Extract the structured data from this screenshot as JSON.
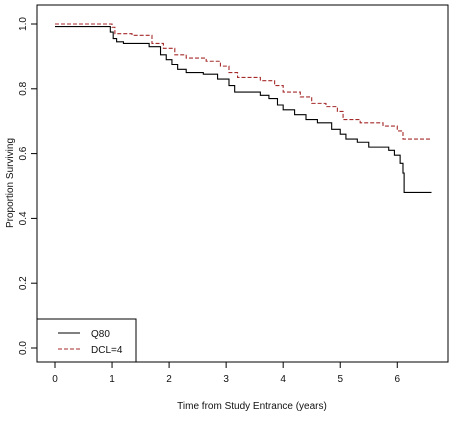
{
  "chart_data": {
    "type": "line",
    "title": "",
    "xlabel": "Time from Study Entrance (years)",
    "ylabel": "Proportion Surviving",
    "xlim": [
      0,
      6.6
    ],
    "ylim": [
      0,
      1.0
    ],
    "x_ticks": [
      "0",
      "1",
      "2",
      "3",
      "4",
      "5",
      "6"
    ],
    "y_ticks": [
      "0.0",
      "0.2",
      "0.4",
      "0.6",
      "0.8",
      "1.0"
    ],
    "grid": false,
    "legend_position": "bottom-left",
    "series": [
      {
        "name": "Q80",
        "color": "#000000",
        "line_style": "solid",
        "steps": [
          [
            0,
            0.992
          ],
          [
            0.97,
            0.975
          ],
          [
            1.02,
            0.955
          ],
          [
            1.08,
            0.945
          ],
          [
            1.2,
            0.94
          ],
          [
            1.65,
            0.93
          ],
          [
            1.85,
            0.905
          ],
          [
            1.95,
            0.89
          ],
          [
            2.05,
            0.875
          ],
          [
            2.15,
            0.86
          ],
          [
            2.3,
            0.85
          ],
          [
            2.6,
            0.845
          ],
          [
            2.85,
            0.83
          ],
          [
            3.05,
            0.81
          ],
          [
            3.15,
            0.79
          ],
          [
            3.6,
            0.78
          ],
          [
            3.75,
            0.77
          ],
          [
            3.9,
            0.75
          ],
          [
            4.0,
            0.735
          ],
          [
            4.2,
            0.72
          ],
          [
            4.4,
            0.705
          ],
          [
            4.6,
            0.695
          ],
          [
            4.85,
            0.675
          ],
          [
            5.0,
            0.66
          ],
          [
            5.1,
            0.645
          ],
          [
            5.3,
            0.635
          ],
          [
            5.5,
            0.62
          ],
          [
            5.85,
            0.61
          ],
          [
            5.95,
            0.595
          ],
          [
            6.05,
            0.57
          ],
          [
            6.1,
            0.54
          ],
          [
            6.12,
            0.48
          ],
          [
            6.6,
            0.48
          ]
        ]
      },
      {
        "name": "DCL=4",
        "color": "#a52a2a",
        "line_style": "dashed",
        "steps": [
          [
            0,
            1.0
          ],
          [
            1.0,
            0.99
          ],
          [
            1.05,
            0.97
          ],
          [
            1.35,
            0.965
          ],
          [
            1.7,
            0.94
          ],
          [
            1.9,
            0.925
          ],
          [
            2.1,
            0.905
          ],
          [
            2.3,
            0.895
          ],
          [
            2.65,
            0.885
          ],
          [
            2.9,
            0.87
          ],
          [
            3.05,
            0.85
          ],
          [
            3.2,
            0.835
          ],
          [
            3.6,
            0.825
          ],
          [
            3.85,
            0.81
          ],
          [
            4.0,
            0.79
          ],
          [
            4.3,
            0.775
          ],
          [
            4.5,
            0.755
          ],
          [
            4.75,
            0.745
          ],
          [
            4.95,
            0.73
          ],
          [
            5.05,
            0.705
          ],
          [
            5.35,
            0.695
          ],
          [
            5.75,
            0.685
          ],
          [
            6.0,
            0.67
          ],
          [
            6.1,
            0.645
          ],
          [
            6.6,
            0.645
          ]
        ]
      }
    ]
  }
}
